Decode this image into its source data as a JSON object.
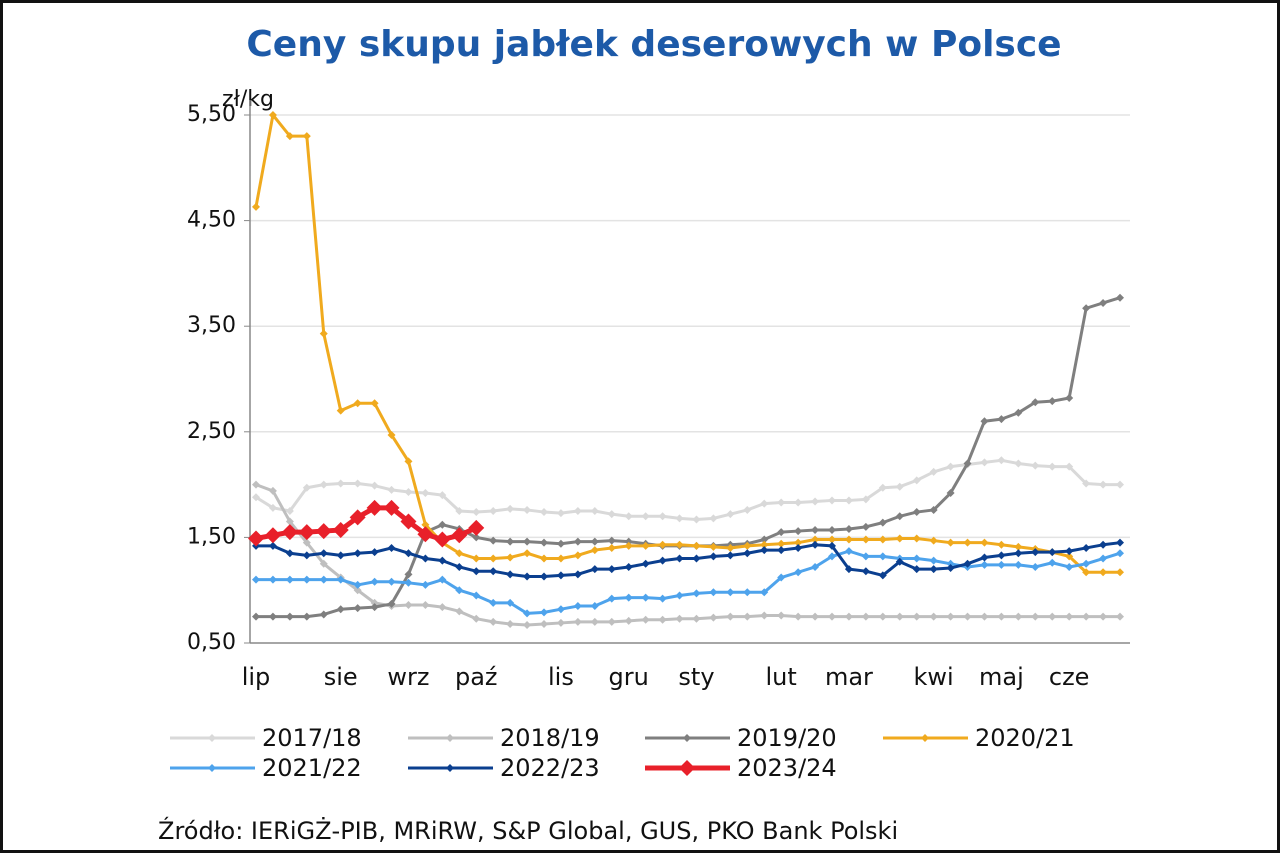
{
  "chart_data": {
    "type": "line",
    "title": "Ceny skupu jabłek deserowych w Polsce",
    "y_label": "zł/kg",
    "source": "Źródło: IERiGŻ-PIB, MRiRW, S&P Global, GUS, PKO Bank Polski",
    "categories": [
      "lip",
      null,
      null,
      null,
      null,
      "sie",
      null,
      null,
      null,
      "wrz",
      null,
      null,
      null,
      "paź",
      null,
      null,
      null,
      null,
      "lis",
      null,
      null,
      null,
      "gru",
      null,
      null,
      null,
      "sty",
      null,
      null,
      null,
      null,
      "lut",
      null,
      null,
      null,
      "mar",
      null,
      null,
      null,
      null,
      "kwi",
      null,
      null,
      null,
      "maj",
      null,
      null,
      null,
      "cze",
      null,
      null,
      null
    ],
    "ylim": [
      0.5,
      5.5
    ],
    "yticks": [
      {
        "value": 0.5,
        "label": "0,50"
      },
      {
        "value": 1.5,
        "label": "1,50"
      },
      {
        "value": 2.5,
        "label": "2,50"
      },
      {
        "value": 3.5,
        "label": "3,50"
      },
      {
        "value": 4.5,
        "label": "4,50"
      },
      {
        "value": 5.5,
        "label": "5,50"
      }
    ],
    "grid": true,
    "legend": "bottom",
    "series": [
      {
        "name": "2017/18",
        "color": "#d9d9d9",
        "values": [
          1.88,
          1.78,
          1.75,
          1.97,
          2.0,
          2.01,
          2.01,
          1.99,
          1.95,
          1.93,
          1.92,
          1.9,
          1.75,
          1.74,
          1.75,
          1.77,
          1.76,
          1.74,
          1.73,
          1.75,
          1.75,
          1.72,
          1.7,
          1.7,
          1.7,
          1.68,
          1.67,
          1.68,
          1.72,
          1.76,
          1.82,
          1.83,
          1.83,
          1.84,
          1.85,
          1.85,
          1.86,
          1.97,
          1.98,
          2.04,
          2.12,
          2.17,
          2.19,
          2.21,
          2.23,
          2.2,
          2.18,
          2.17,
          2.17,
          2.01,
          2.0,
          2.0
        ]
      },
      {
        "name": "2018/19",
        "color": "#bfbfbf",
        "values": [
          2.0,
          1.94,
          1.65,
          1.45,
          1.25,
          1.12,
          1.0,
          0.88,
          0.85,
          0.86,
          0.86,
          0.84,
          0.8,
          0.73,
          0.7,
          0.68,
          0.67,
          0.68,
          0.69,
          0.7,
          0.7,
          0.7,
          0.71,
          0.72,
          0.72,
          0.73,
          0.73,
          0.74,
          0.75,
          0.75,
          0.76,
          0.76,
          0.75,
          0.75,
          0.75,
          0.75,
          0.75,
          0.75,
          0.75,
          0.75,
          0.75,
          0.75,
          0.75,
          0.75,
          0.75,
          0.75,
          0.75,
          0.75,
          0.75,
          0.75,
          0.75,
          0.75
        ]
      },
      {
        "name": "2019/20",
        "color": "#7f7f7f",
        "values": [
          0.75,
          0.75,
          0.75,
          0.75,
          0.77,
          0.82,
          0.83,
          0.84,
          0.87,
          1.15,
          1.55,
          1.62,
          1.58,
          1.5,
          1.47,
          1.46,
          1.46,
          1.45,
          1.44,
          1.46,
          1.46,
          1.47,
          1.46,
          1.44,
          1.42,
          1.42,
          1.42,
          1.42,
          1.43,
          1.44,
          1.48,
          1.55,
          1.56,
          1.57,
          1.57,
          1.58,
          1.6,
          1.64,
          1.7,
          1.74,
          1.76,
          1.92,
          2.2,
          2.6,
          2.62,
          2.68,
          2.78,
          2.79,
          2.82,
          3.67,
          3.72,
          3.77
        ]
      },
      {
        "name": "2020/21",
        "color": "#f0aa1e",
        "values": [
          4.63,
          5.5,
          5.3,
          5.3,
          3.43,
          2.7,
          2.77,
          2.77,
          2.47,
          2.22,
          1.62,
          1.45,
          1.35,
          1.3,
          1.3,
          1.31,
          1.35,
          1.3,
          1.3,
          1.33,
          1.38,
          1.4,
          1.42,
          1.42,
          1.43,
          1.43,
          1.42,
          1.41,
          1.4,
          1.42,
          1.43,
          1.44,
          1.45,
          1.48,
          1.48,
          1.48,
          1.48,
          1.48,
          1.49,
          1.49,
          1.47,
          1.45,
          1.45,
          1.45,
          1.43,
          1.41,
          1.39,
          1.36,
          1.32,
          1.17,
          1.17,
          1.17
        ]
      },
      {
        "name": "2021/22",
        "color": "#4ea3ec",
        "values": [
          1.1,
          1.1,
          1.1,
          1.1,
          1.1,
          1.1,
          1.05,
          1.08,
          1.08,
          1.07,
          1.05,
          1.1,
          1.0,
          0.95,
          0.88,
          0.88,
          0.78,
          0.79,
          0.82,
          0.85,
          0.85,
          0.92,
          0.93,
          0.93,
          0.92,
          0.95,
          0.97,
          0.98,
          0.98,
          0.98,
          0.98,
          1.12,
          1.17,
          1.22,
          1.32,
          1.37,
          1.32,
          1.32,
          1.3,
          1.3,
          1.28,
          1.25,
          1.22,
          1.24,
          1.24,
          1.24,
          1.22,
          1.26,
          1.22,
          1.25,
          1.3,
          1.35
        ]
      },
      {
        "name": "2022/23",
        "color": "#0b3f8f",
        "values": [
          1.42,
          1.42,
          1.35,
          1.33,
          1.35,
          1.33,
          1.35,
          1.36,
          1.4,
          1.35,
          1.3,
          1.28,
          1.22,
          1.18,
          1.18,
          1.15,
          1.13,
          1.13,
          1.14,
          1.15,
          1.2,
          1.2,
          1.22,
          1.25,
          1.28,
          1.3,
          1.3,
          1.32,
          1.33,
          1.35,
          1.38,
          1.38,
          1.4,
          1.43,
          1.42,
          1.2,
          1.18,
          1.14,
          1.27,
          1.2,
          1.2,
          1.21,
          1.25,
          1.31,
          1.33,
          1.35,
          1.36,
          1.36,
          1.37,
          1.4,
          1.43,
          1.45
        ]
      },
      {
        "name": "2023/24",
        "color": "#e8202a",
        "values": [
          1.49,
          1.52,
          1.55,
          1.55,
          1.56,
          1.57,
          1.69,
          1.78,
          1.78,
          1.65,
          1.53,
          1.48,
          1.52,
          1.59,
          null,
          null,
          null,
          null,
          null,
          null,
          null,
          null,
          null,
          null,
          null,
          null,
          null,
          null,
          null,
          null,
          null,
          null,
          null,
          null,
          null,
          null,
          null,
          null,
          null,
          null,
          null,
          null,
          null,
          null,
          null,
          null,
          null,
          null,
          null,
          null,
          null,
          null
        ]
      }
    ]
  }
}
